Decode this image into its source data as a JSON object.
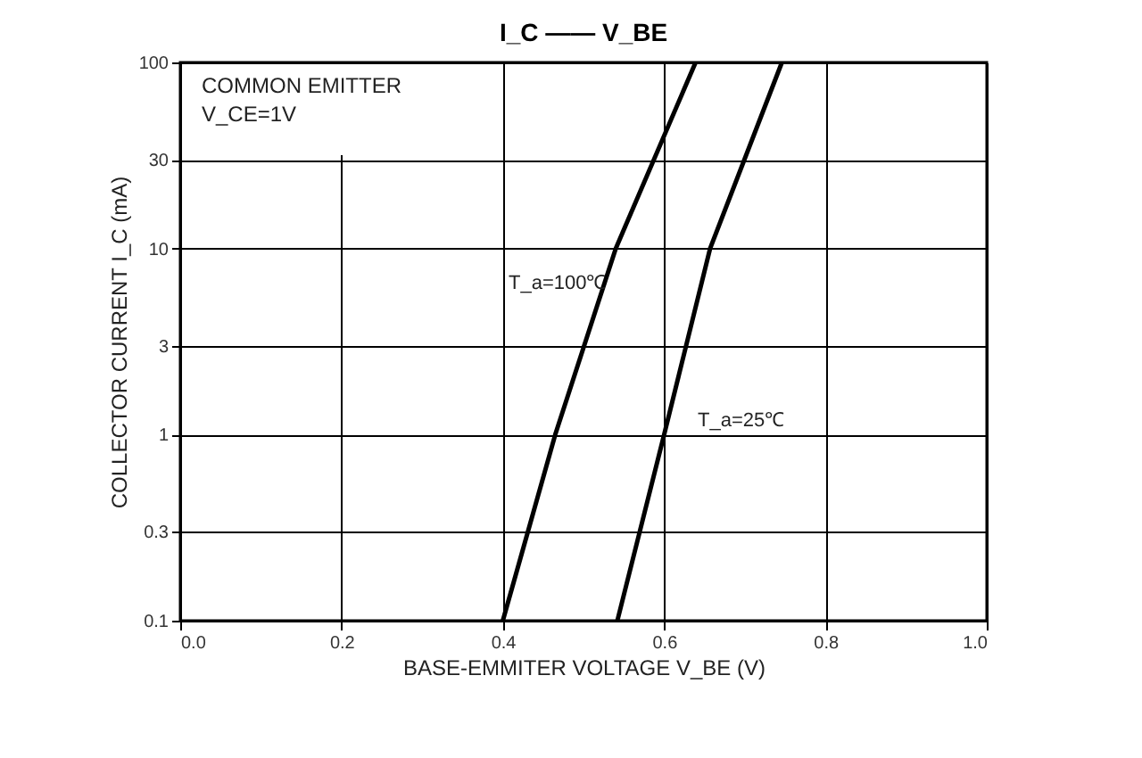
{
  "chart_data": {
    "type": "line",
    "title": "I_C —— V_BE",
    "xlabel": "BASE-EMMITER VOLTAGE  V_BE  (V)",
    "ylabel": "COLLECTOR CURRENT   I_C   (mA)",
    "series": [
      {
        "color": "#000000",
        "x": [
          0.4,
          0.465,
          0.54,
          0.639
        ],
        "values": [
          0.1,
          1,
          10,
          100
        ]
      },
      {
        "color": "#000000",
        "x": [
          0.542,
          0.6,
          0.657,
          0.746
        ],
        "values": [
          0.1,
          1,
          10,
          100
        ]
      }
    ],
    "xlim": [
      0,
      1.0
    ],
    "xticks": [
      {
        "value": 0,
        "label": "0.0"
      },
      0.2,
      0.4,
      0.6,
      0.8,
      {
        "value": 1,
        "label": "1.0"
      }
    ],
    "ylim": [
      0.1,
      100
    ],
    "yticks": [
      0.1,
      0.3,
      1,
      3,
      10,
      30,
      100
    ],
    "log": "y",
    "grid": true,
    "marker": "none",
    "line_style": "solid",
    "annotations": [
      "COMMON EMITTER",
      "V_CE=1V",
      "T_a=100℃",
      "T_a=25℃"
    ]
  }
}
